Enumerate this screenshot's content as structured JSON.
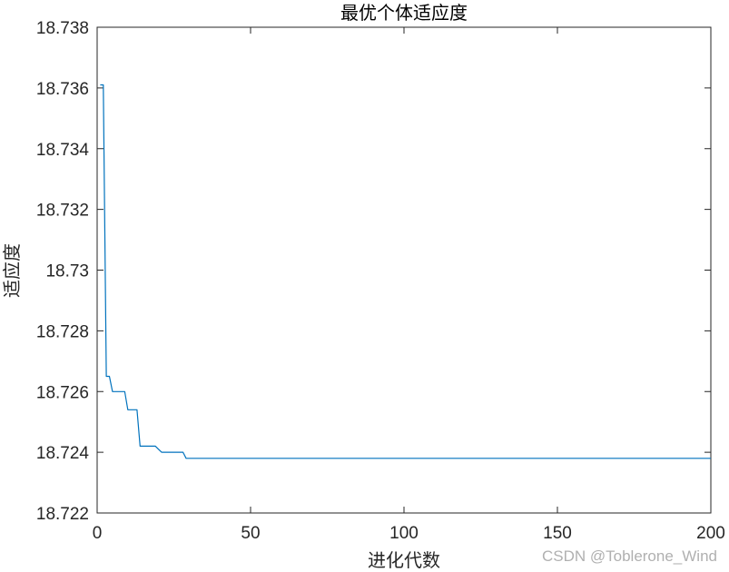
{
  "chart_data": {
    "type": "line",
    "title": "最优个体适应度",
    "xlabel": "进化代数",
    "ylabel": "适应度",
    "xlim": [
      0,
      200
    ],
    "ylim": [
      18.722,
      18.738
    ],
    "x_ticks": [
      0,
      50,
      100,
      150,
      200
    ],
    "x_tick_labels": [
      "0",
      "50",
      "100",
      "150",
      "200"
    ],
    "y_ticks": [
      18.722,
      18.724,
      18.726,
      18.728,
      18.73,
      18.732,
      18.734,
      18.736,
      18.738
    ],
    "y_tick_labels": [
      "18.722",
      "18.724",
      "18.726",
      "18.728",
      "18.73",
      "18.732",
      "18.734",
      "18.736",
      "18.738"
    ],
    "grid": false,
    "series_color": "#0072BD",
    "series": [
      {
        "x": [
          1,
          2,
          3,
          4,
          5,
          9,
          10,
          11,
          13,
          14,
          15,
          19,
          20,
          21,
          28,
          29,
          200
        ],
        "y": [
          18.7361,
          18.7361,
          18.7265,
          18.7265,
          18.726,
          18.726,
          18.7254,
          18.7254,
          18.7254,
          18.7242,
          18.7242,
          18.7242,
          18.7241,
          18.724,
          18.724,
          18.7238,
          18.7238
        ]
      }
    ]
  },
  "watermark": "CSDN @Toblerone_Wind"
}
